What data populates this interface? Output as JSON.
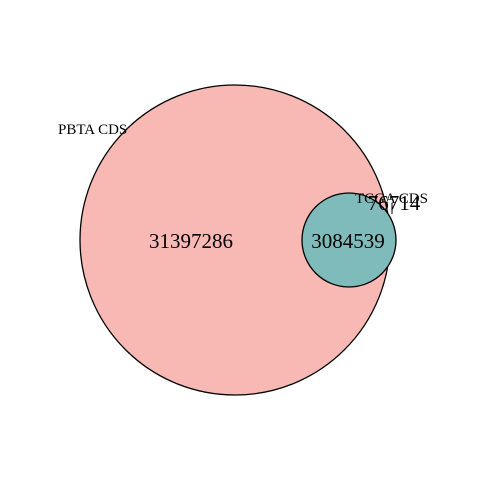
{
  "diagram": {
    "type": "venn",
    "sets": [
      {
        "name": "PBTA CDS",
        "fill": "#f8b8b4",
        "stroke": "#000000"
      },
      {
        "name": "TCGA CDS",
        "fill": "#80bbbb",
        "stroke": "#000000"
      }
    ],
    "regions": {
      "pbta_only": "31397286",
      "overlap": "3084539",
      "tcga_only": "76714"
    }
  }
}
